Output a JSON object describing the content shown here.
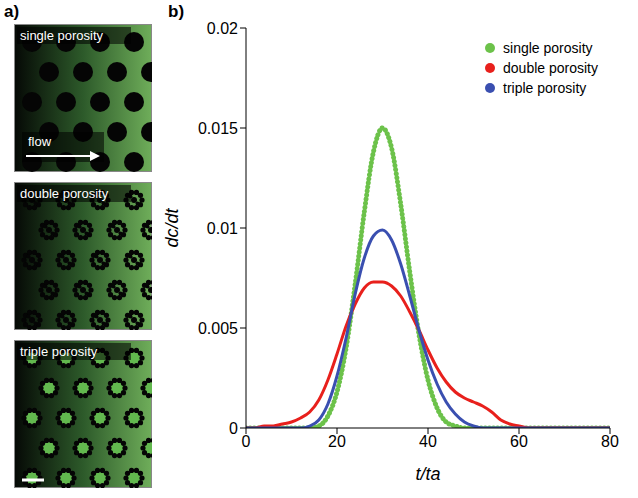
{
  "panels": {
    "a": {
      "letter": "a)",
      "images": [
        {
          "label": "single porosity",
          "annotation": "flow"
        },
        {
          "label": "double porosity"
        },
        {
          "label": "triple porosity"
        }
      ]
    },
    "b": {
      "letter": "b)"
    }
  },
  "chart_data": {
    "type": "line",
    "x_label": "t/ta",
    "y_label": "dc/dt",
    "x": [
      0,
      2,
      4,
      6,
      8,
      10,
      12,
      14,
      16,
      18,
      20,
      22,
      24,
      26,
      28,
      30,
      32,
      34,
      36,
      38,
      40,
      42,
      44,
      46,
      48,
      50,
      52,
      54,
      56,
      58,
      60,
      62,
      64,
      66,
      68,
      70,
      72,
      74,
      76,
      78,
      80
    ],
    "series": [
      {
        "name": "single porosity",
        "color": "#6cc24a",
        "line_style": "dotted",
        "values": [
          0,
          0,
          0,
          0,
          0,
          0,
          0,
          0,
          0.0001,
          0.0006,
          0.0018,
          0.004,
          0.0072,
          0.0108,
          0.0138,
          0.015,
          0.014,
          0.0112,
          0.0078,
          0.0047,
          0.0024,
          0.001,
          0.0003,
          0.0001,
          0,
          0,
          0,
          0,
          0,
          0,
          0,
          0,
          0,
          0,
          0,
          0,
          0,
          0,
          0,
          0,
          0
        ]
      },
      {
        "name": "double porosity",
        "color": "#e8201c",
        "line_style": "solid",
        "values": [
          0,
          0,
          0.0001,
          0.0001,
          0.0002,
          0.0003,
          0.0005,
          0.0008,
          0.0014,
          0.0024,
          0.0037,
          0.0051,
          0.0062,
          0.007,
          0.0073,
          0.0073,
          0.0071,
          0.0066,
          0.0058,
          0.0049,
          0.0039,
          0.003,
          0.0023,
          0.0018,
          0.0015,
          0.0013,
          0.0011,
          0.0008,
          0.0004,
          0.0002,
          0.0001,
          0,
          0,
          0,
          0,
          0,
          0,
          0,
          0,
          0,
          0
        ]
      },
      {
        "name": "triple porosity",
        "color": "#3a4fb0",
        "line_style": "solid",
        "values": [
          0,
          0,
          0,
          0,
          0,
          0,
          0,
          0.0001,
          0.0004,
          0.0012,
          0.0026,
          0.0045,
          0.0067,
          0.0085,
          0.0096,
          0.0099,
          0.0094,
          0.0082,
          0.0066,
          0.0049,
          0.0034,
          0.0022,
          0.0013,
          0.0007,
          0.0003,
          0.0001,
          0,
          0,
          0,
          0,
          0,
          0,
          0,
          0,
          0,
          0,
          0,
          0,
          0,
          0,
          0
        ]
      }
    ],
    "xlim": [
      0,
      80
    ],
    "xticks": [
      0,
      20,
      40,
      60,
      80
    ],
    "ylim": [
      0,
      0.02
    ],
    "yticks": [
      0,
      0.005,
      0.01,
      0.015,
      0.02
    ],
    "legend": "upper right",
    "grid": false
  }
}
